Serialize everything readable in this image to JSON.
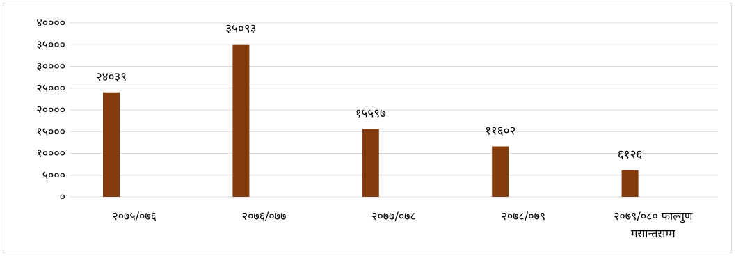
{
  "chart_data": {
    "type": "bar",
    "categories": [
      [
        "२०७५/०७६"
      ],
      [
        "२०७६/०७७"
      ],
      [
        "२०७७/०७८"
      ],
      [
        "२०७८/०७९"
      ],
      [
        "२०७९/०८० फाल्गुण",
        "मसान्तसम्म"
      ]
    ],
    "values": [
      24039,
      35093,
      15597,
      11602,
      6126
    ],
    "data_labels": [
      "२४०३९",
      "३५०९३",
      "१५५९७",
      "११६०२",
      "६१२६"
    ],
    "y_ticks": [
      0,
      5000,
      10000,
      15000,
      20000,
      25000,
      30000,
      35000,
      40000
    ],
    "y_tick_labels": [
      "०",
      "५०००",
      "१००००",
      "१५०००",
      "२००००",
      "२५०००",
      "३००००",
      "३५०००",
      "४००००"
    ],
    "ylim": [
      0,
      40000
    ],
    "grid": true,
    "bar_color": "#843c0c",
    "grid_color": "#d9d9d9",
    "title": "",
    "xlabel": "",
    "ylabel": ""
  }
}
